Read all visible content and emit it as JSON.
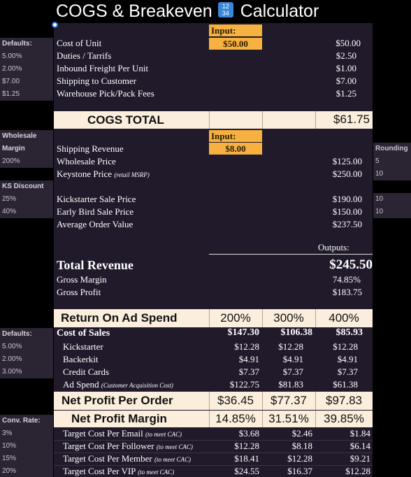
{
  "title": "COGS & Breakeven",
  "title_emoji": "1234",
  "title_suffix": "Calculator",
  "input_label": "Input:",
  "outputs_label": "Outputs:",
  "left_col": {
    "defaults_1": "Defaults:",
    "defaults_1_values": [
      "5.00%",
      "2.00%",
      "$7.00",
      "$1.25"
    ],
    "wholesale_1": "Wholesale",
    "wholesale_2": "Margin",
    "wholesale_value": "200%",
    "ks_discount": "KS Discount",
    "ks_values": [
      "25%",
      "40%"
    ],
    "defaults_2": "Defaults:",
    "defaults_2_values": [
      "5.00%",
      "2.00%",
      "3.00%"
    ],
    "conv_rate": "Conv. Rate:",
    "conv_values": [
      "3%",
      "10%",
      "15%",
      "20%"
    ]
  },
  "right_col": {
    "rounding": "Rounding",
    "values": [
      "5",
      "10",
      "10",
      "10"
    ]
  },
  "cogs": {
    "cost_of_unit_label": "Cost of Unit",
    "cost_of_unit_input": "$50.00",
    "cost_of_unit_value": "$50.00",
    "rows": [
      {
        "label": "Duties / Tarrifs",
        "value": "$2.50"
      },
      {
        "label": "Inbound Freight Per Unit",
        "value": "$1.00"
      },
      {
        "label": "Shipping to Customer",
        "value": "$7.00"
      },
      {
        "label": "Warehouse Pick/Pack Fees",
        "value": "$1.25"
      }
    ],
    "total_label": "COGS TOTAL",
    "total_value": "$61.75"
  },
  "pricing": {
    "shipping_revenue_label": "Shipping Revenue",
    "shipping_revenue_input": "$8.00",
    "wholesale_label": "Wholesale Price",
    "wholesale_value": "$125.00",
    "keystone_label": "Keystone Price",
    "keystone_note": "(retail MSRP)",
    "keystone_value": "$250.00",
    "kickstarter_label": "Kickstarter Sale Price",
    "kickstarter_value": "$190.00",
    "early_bird_label": "Early Bird Sale Price",
    "early_bird_value": "$150.00",
    "aov_label": "Average Order Value",
    "aov_value": "$237.50"
  },
  "revenue": {
    "total_label": "Total Revenue",
    "total_value": "$245.50",
    "gross_margin_label": "Gross Margin",
    "gross_margin_value": "74.85%",
    "gross_profit_label": "Gross Profit",
    "gross_profit_value": "$183.75"
  },
  "roas": {
    "label": "Return On Ad Spend",
    "columns": [
      "200%",
      "300%",
      "400%"
    ],
    "cost_of_sales_label": "Cost of Sales",
    "cost_of_sales": [
      "$147.30",
      "$106.38",
      "$85.93"
    ],
    "kickstarter_label": "Kickstarter",
    "kickstarter": [
      "$12.28",
      "$12.28",
      "$12.28"
    ],
    "backerkit_label": "Backerkit",
    "backerkit": [
      "$4.91",
      "$4.91",
      "$4.91"
    ],
    "credit_cards_label": "Credit Cards",
    "credit_cards": [
      "$7.37",
      "$7.37",
      "$7.37"
    ],
    "ad_spend_label": "Ad Spend",
    "ad_spend_note": "(Customer Acquisition Cost)",
    "ad_spend": [
      "$122.75",
      "$81.83",
      "$61.38"
    ],
    "net_profit_label": "Net Profit Per Order",
    "net_profit": [
      "$36.45",
      "$77.37",
      "$97.83"
    ],
    "net_margin_label": "Net Profit Margin",
    "net_margin": [
      "14.85%",
      "31.51%",
      "39.85%"
    ],
    "target_note": "(to meet CAC)",
    "email_label": "Target Cost Per Email",
    "email": [
      "$3.68",
      "$2.46",
      "$1.84"
    ],
    "follower_label": "Target Cost Per Follower",
    "follower": [
      "$12.28",
      "$8.18",
      "$6.14"
    ],
    "member_label": "Target Cost Per Member",
    "member": [
      "$18.41",
      "$12.28",
      "$9.21"
    ],
    "vip_label": "Target Cost Per VIP",
    "vip": [
      "$24.55",
      "$16.37",
      "$12.28"
    ]
  },
  "colors": {
    "panel": "#211a2b",
    "input_orange": "#f7b141",
    "band_cream": "#fbeedc",
    "side_gray": "#2b2433"
  }
}
